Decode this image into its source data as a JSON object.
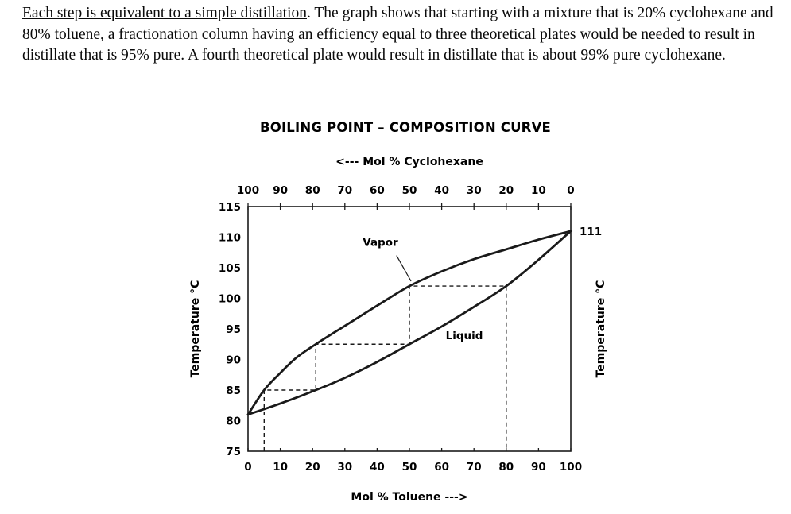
{
  "page": {
    "background": "#ffffff",
    "text_color": "#0a0a0a"
  },
  "paragraph": {
    "underlined_text": "Each step is equivalent to a simple distillation",
    "body_text": ". The graph shows that starting with a mixture that is 20% cyclohexane and 80% toluene, a fractionation column having an efficiency equal to three theoretical plates would be needed to result in distillate that is 95% pure. A fourth theoretical plate would result in distillate that is about 99% pure cyclohexane."
  },
  "chart_data": {
    "type": "line",
    "title": "BOILING POINT – COMPOSITION CURVE",
    "top_axis_label": "<--- Mol % Cyclohexane",
    "bottom_axis_label": "Mol % Toluene --->",
    "left_axis_label": "Temperature °C",
    "right_axis_label": "Temperature °C",
    "right_edge_annotation": {
      "text": "111",
      "temperature": 111
    },
    "xlim": [
      0,
      100
    ],
    "ylim": [
      75,
      115
    ],
    "x_ticks_bottom": [
      0,
      10,
      20,
      30,
      40,
      50,
      60,
      70,
      80,
      90,
      100
    ],
    "x_ticks_top": [
      100,
      90,
      80,
      70,
      60,
      50,
      40,
      30,
      20,
      10,
      0
    ],
    "y_ticks": [
      75,
      80,
      85,
      90,
      95,
      100,
      105,
      110,
      115
    ],
    "grid": false,
    "line_color": "#1a1a1a",
    "series": [
      {
        "name": "Vapor",
        "x": [
          0,
          5,
          10,
          15,
          21,
          30,
          40,
          50,
          60,
          70,
          80,
          90,
          100
        ],
        "y": [
          81,
          85,
          87.8,
          90.3,
          92.5,
          95.5,
          98.8,
          102,
          104.4,
          106.4,
          108,
          109.6,
          111
        ]
      },
      {
        "name": "Liquid",
        "x": [
          0,
          10,
          21,
          30,
          40,
          50,
          60,
          70,
          80,
          90,
          100
        ],
        "y": [
          81,
          82.8,
          85,
          87,
          89.6,
          92.5,
          95.4,
          98.6,
          102,
          106.3,
          111
        ]
      }
    ],
    "distillation_steps": [
      [
        5,
        75
      ],
      [
        5,
        85
      ],
      [
        21,
        85
      ],
      [
        21,
        92.5
      ],
      [
        50,
        92.5
      ],
      [
        50,
        102
      ],
      [
        80,
        102
      ],
      [
        80,
        75
      ]
    ],
    "annotations": [
      {
        "text": "Vapor",
        "x": 41,
        "y": 108.6,
        "pointer": [
          [
            46,
            107.0
          ],
          [
            50.5,
            102.8
          ]
        ]
      },
      {
        "text": "Liquid",
        "x": 67,
        "y": 93.3
      }
    ]
  }
}
